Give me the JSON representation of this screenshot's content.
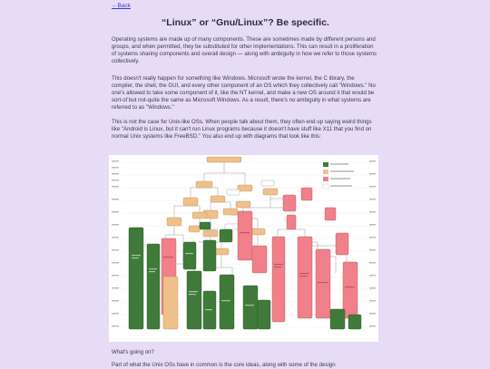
{
  "nav": {
    "back_label": "←Back"
  },
  "title": "“Linux” or “Gnu/Linux”? Be specific.",
  "paragraphs": {
    "p1": "Operating systems are made up of many components. These are sometimes made by different persons and groups, and when permitted, they be substituted for other implementations. This can result in a proliferation of systems sharing components and overall design — along with ambiguity in how we refer to those systems collectively.",
    "p2": "This doesn't really happen for something like Windows. Microsoft wrote the kernel, the C library, the compiler, the shell, the GUI, and every other component of an OS which they collectively call \"Windows.\" No one's allowed to take some component of it, like the NT kernel, and make a new OS around it that would be sort-of but not-quite the same as Microsoft Windows. As a result, there's no ambiguity in what systems are referred to as \"Windows.\"",
    "p3": "This is not the case for Unix-like OSs. When people talk about them, they often end up saying weird things like \"Android is Linux, but it can't run Linux programs because it doesn't have stuff like X11 that you find on normal Unix systems like FreeBSD.\" You also end up with diagrams that look like this:",
    "p4": "What's going on?",
    "p5": "Part of what the Unix OSs have in common is the core ideas, along with some of the design"
  },
  "diagram": {
    "colors": {
      "open_source": "#3f7a3a",
      "mixed_shared": "#f0c08c",
      "closed_source": "#f0808a",
      "background": "#ffffff",
      "lines": "#9a9a9a"
    }
  }
}
